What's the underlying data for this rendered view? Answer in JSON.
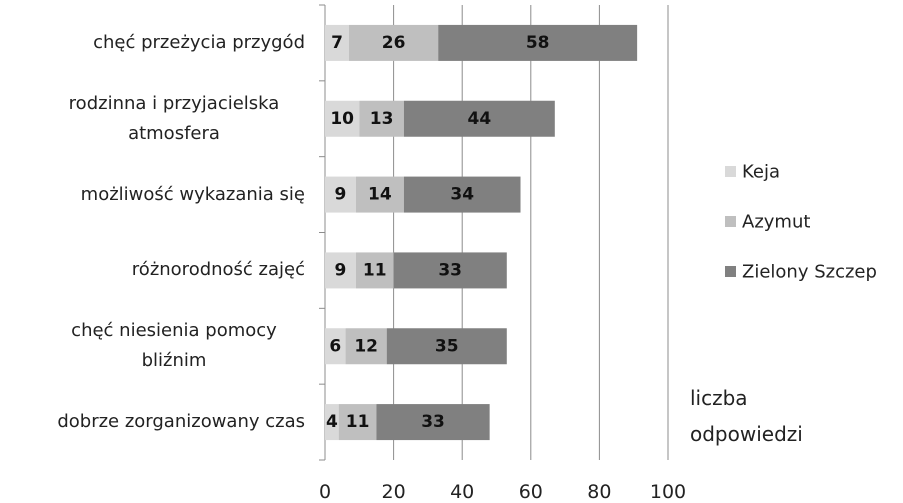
{
  "chart_data": {
    "type": "bar",
    "orientation": "horizontal",
    "stacked": true,
    "categories": [
      "chęć przeżycia przygód",
      "rodzinna i przyjacielska atmosfera",
      "możliwość wykazania się",
      "różnorodność zajęć",
      "chęć niesienia pomocy bliźnim",
      "dobrze zorganizowany czas"
    ],
    "series": [
      {
        "name": "Keja",
        "color": "#d9d9d9",
        "values": [
          7,
          10,
          9,
          9,
          6,
          4
        ]
      },
      {
        "name": "Azymut",
        "color": "#bfbfbf",
        "values": [
          26,
          13,
          14,
          11,
          12,
          11
        ]
      },
      {
        "name": "Zielony Szczep",
        "color": "#808080",
        "values": [
          58,
          44,
          34,
          33,
          35,
          33
        ]
      }
    ],
    "xlabel": "liczba odpowiedzi",
    "xlim": [
      0,
      100
    ],
    "xticks": [
      0,
      20,
      40,
      60,
      80,
      100
    ],
    "grid": true,
    "legend": "right"
  }
}
